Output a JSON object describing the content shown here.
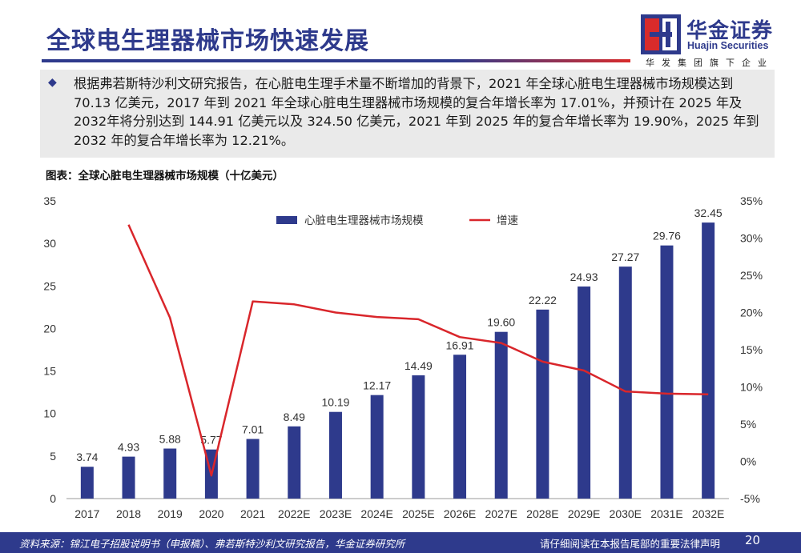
{
  "header": {
    "title": "全球电生理器械市场快速发展",
    "logo_name_cn": "华金证券",
    "logo_name_en": "Huajin Securities",
    "logo_subtitle": "华发集团旗下企业"
  },
  "summary": {
    "bullet": "◆",
    "text": "根据弗若斯特沙利文研究报告，在心脏电生理手术量不断增加的背景下，2021 年全球心脏电生理器械市场规模达到 70.13 亿美元，2017 年到 2021 年全球心脏电生理器械市场规模的复合年增长率为 17.01%，并预计在 2025 年及 2032年将分别达到 144.91 亿美元以及 324.50 亿美元，2021 年到 2025 年的复合年增长率为 19.90%，2025 年到 2032 年的复合年增长率为 12.21%。"
  },
  "figure_caption": "图表：全球心脏电生理器械市场规模（十亿美元）",
  "chart_data": {
    "type": "bar",
    "categories": [
      "2017",
      "2018",
      "2019",
      "2020",
      "2021",
      "2022E",
      "2023E",
      "2024E",
      "2025E",
      "2026E",
      "2027E",
      "2028E",
      "2029E",
      "2030E",
      "2031E",
      "2032E"
    ],
    "series": [
      {
        "name": "心脏电生理器械市场规模",
        "type": "bar",
        "axis": "left",
        "color": "#2e3a8c",
        "values": [
          3.74,
          4.93,
          5.88,
          5.77,
          7.01,
          8.49,
          10.19,
          12.17,
          14.49,
          16.91,
          19.6,
          22.22,
          24.93,
          27.27,
          29.76,
          32.45
        ],
        "labels": [
          "3.74",
          "4.93",
          "5.88",
          "5.77",
          "7.01",
          "8.49",
          "10.19",
          "12.17",
          "14.49",
          "16.91",
          "19.60",
          "22.22",
          "24.93",
          "27.27",
          "29.76",
          "32.45"
        ]
      },
      {
        "name": "增速",
        "type": "line",
        "axis": "right",
        "color": "#d9262b",
        "values": [
          null,
          31.8,
          19.3,
          -1.9,
          21.5,
          21.1,
          20.0,
          19.4,
          19.1,
          16.7,
          15.9,
          13.4,
          12.2,
          9.4,
          9.1,
          9.0
        ]
      }
    ],
    "y_left": {
      "min": 0,
      "max": 35,
      "ticks": [
        "0",
        "5",
        "10",
        "15",
        "20",
        "25",
        "30",
        "35"
      ]
    },
    "y_right": {
      "min": -5,
      "max": 35,
      "ticks": [
        "-5%",
        "0%",
        "5%",
        "10%",
        "15%",
        "20%",
        "25%",
        "30%",
        "35%"
      ]
    },
    "grid": false,
    "legend_position": "top-center"
  },
  "footer": {
    "source": "资料来源：锦江电子招股说明书（申报稿）、弗若斯特沙利文研究报告，华金证券研究所",
    "disclaimer": "请仔细阅读在本报告尾部的重要法律声明",
    "page_number": "20"
  }
}
